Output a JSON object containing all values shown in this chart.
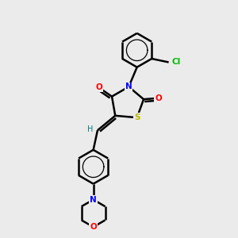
{
  "bg_color": "#ebebeb",
  "bond_color": "#000000",
  "S_color": "#b8b800",
  "N_color": "#0000ff",
  "O_color": "#ff0000",
  "Cl_color": "#00bb00",
  "H_color": "#008080",
  "line_width": 1.8,
  "fig_w": 3.0,
  "fig_h": 3.0,
  "dpi": 100,
  "xlim": [
    0,
    10
  ],
  "ylim": [
    0,
    10
  ]
}
